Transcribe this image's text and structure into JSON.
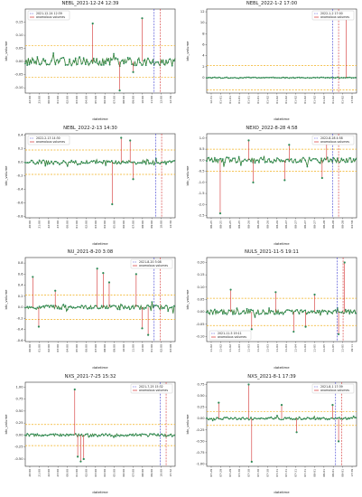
{
  "colors": {
    "series_line": "#2e7d32",
    "series_point": "#2e8b57",
    "anomaly_line": "#d32f2f",
    "threshold": "#f2b01e",
    "event_line": "#3a3ad0"
  },
  "chart_data": [
    {
      "type": "line",
      "title": "NEBL_2021-12-24 12:39",
      "xlabel": "datetime",
      "ylabel": "btc_volume",
      "ylim": [
        -0.12,
        0.2
      ],
      "yticks": [
        -0.1,
        -0.05,
        0.0,
        0.05,
        0.1,
        0.15
      ],
      "ytick_labels": [
        "-0.10",
        "-0.05",
        "0.00",
        "0.05",
        "0.10",
        "0.15"
      ],
      "thresholds": [
        0.06,
        -0.06
      ],
      "event_line": 0.86,
      "legend": [
        "2021-12-24 12:39",
        "anomalous volumes"
      ],
      "legend_pos": "top-left",
      "base_amp": 0.015,
      "anomalies": [
        [
          0.45,
          0.145
        ],
        [
          0.63,
          -0.11
        ],
        [
          0.78,
          0.165
        ],
        [
          0.72,
          -0.04
        ]
      ],
      "xticks": [
        "22:00",
        "23:00",
        "00:00",
        "01:00",
        "02:00",
        "03:00",
        "04:00",
        "05:00",
        "06:00",
        "07:00",
        "08:00",
        "09:00",
        "10:00",
        "11:00",
        "12:00",
        "12:39"
      ]
    },
    {
      "type": "line",
      "title": "NEBL_2022-1-2 17:00",
      "xlabel": "datetime",
      "ylabel": "btc_volume",
      "ylim": [
        -2.8,
        12.5
      ],
      "yticks": [
        0,
        2,
        4,
        6,
        8,
        10,
        12
      ],
      "ytick_labels": [
        "0",
        "2",
        "4",
        "6",
        "8",
        "10",
        "12"
      ],
      "thresholds": [
        2.2,
        -2.2
      ],
      "event_line": 0.84,
      "legend": [
        "2022-1-2 17:00",
        "anomalous volumes"
      ],
      "legend_pos": "top-right",
      "base_amp": 0.08,
      "anomalies": [
        [
          0.93,
          11.5
        ]
      ],
      "xticks": [
        "12-31",
        "01-01",
        "01-01",
        "01-01",
        "01-01",
        "01-01",
        "01-02",
        "01-02",
        "01-02",
        "01-02",
        "01-02",
        "01-02",
        "01-02",
        "01-02",
        "01-02",
        "17:00"
      ]
    },
    {
      "type": "line",
      "title": "NEBL_2022-2-13 14:30",
      "xlabel": "datetime",
      "ylabel": "btc_volume",
      "ylim": [
        -0.82,
        0.42
      ],
      "yticks": [
        -0.8,
        -0.6,
        -0.4,
        -0.2,
        0.0,
        0.2,
        0.4
      ],
      "ytick_labels": [
        "-0.8",
        "-0.6",
        "-0.4",
        "-0.2",
        "0.0",
        "0.2",
        "0.4"
      ],
      "thresholds": [
        0.18,
        -0.18
      ],
      "event_line": 0.87,
      "legend": [
        "2022-2-13 14:30",
        "anomalous volumes"
      ],
      "legend_pos": "top-left",
      "base_amp": 0.03,
      "anomalies": [
        [
          0.58,
          -0.62
        ],
        [
          0.64,
          0.36
        ],
        [
          0.7,
          0.32
        ],
        [
          0.72,
          -0.25
        ]
      ],
      "xticks": [
        "20:00",
        "21:00",
        "22:00",
        "23:00",
        "00:00",
        "01:00",
        "02:00",
        "03:00",
        "04:00",
        "05:00",
        "06:00",
        "07:00",
        "08:00",
        "09:00",
        "10:00",
        "14:30"
      ]
    },
    {
      "type": "line",
      "title": "NEXO_2022-8-28 4:58",
      "xlabel": "datetime",
      "ylabel": "btc_volume",
      "ylim": [
        -2.6,
        1.2
      ],
      "yticks": [
        -2.5,
        -2.0,
        -1.5,
        -1.0,
        -0.5,
        0.0,
        0.5,
        1.0
      ],
      "ytick_labels": [
        "-2.5",
        "-2.0",
        "-1.5",
        "-1.0",
        "-0.5",
        "0.0",
        "0.5",
        "1.0"
      ],
      "thresholds": [
        0.5,
        -0.5
      ],
      "event_line": 0.84,
      "legend": [
        "2022-8-28 4:58",
        "anomalous volumes"
      ],
      "legend_pos": "top-right",
      "base_amp": 0.12,
      "anomalies": [
        [
          0.09,
          -2.4
        ],
        [
          0.28,
          0.9
        ],
        [
          0.31,
          -1.0
        ],
        [
          0.52,
          -0.9
        ],
        [
          0.55,
          0.7
        ],
        [
          0.77,
          -0.8
        ],
        [
          0.8,
          0.9
        ]
      ],
      "xticks": [
        "08-25",
        "08-25",
        "08-25",
        "08-25",
        "08-26",
        "08-26",
        "08-26",
        "08-26",
        "08-27",
        "08-27",
        "08-27",
        "08-27",
        "08-28",
        "08-28",
        "08-28",
        "04:58"
      ]
    },
    {
      "type": "line",
      "title": "NU_2021-8-20 3:08",
      "xlabel": "datetime",
      "ylabel": "btc_volume",
      "ylim": [
        -0.62,
        0.9
      ],
      "yticks": [
        -0.6,
        -0.4,
        -0.2,
        0.0,
        0.2,
        0.4,
        0.6,
        0.8
      ],
      "ytick_labels": [
        "-0.6",
        "-0.4",
        "-0.2",
        "0.0",
        "0.2",
        "0.4",
        "0.6",
        "0.8"
      ],
      "thresholds": [
        0.22,
        -0.22
      ],
      "event_line": 0.86,
      "legend": [
        "2021-8-20 3:08",
        "anomalous volumes"
      ],
      "legend_pos": "top-right",
      "base_amp": 0.04,
      "anomalies": [
        [
          0.05,
          0.55
        ],
        [
          0.09,
          -0.35
        ],
        [
          0.2,
          0.3
        ],
        [
          0.48,
          0.7
        ],
        [
          0.52,
          0.62
        ],
        [
          0.56,
          0.45
        ],
        [
          0.74,
          0.6
        ],
        [
          0.78,
          -0.38
        ],
        [
          0.82,
          -0.5
        ]
      ],
      "xticks": [
        "00:00",
        "01:00",
        "02:00",
        "03:00",
        "04:00",
        "05:00",
        "06:00",
        "07:00",
        "08:00",
        "09:00",
        "10:00",
        "11:00",
        "12:00",
        "01:00",
        "02:00",
        "03:08"
      ]
    },
    {
      "type": "line",
      "title": "NULS_2021-11-5 19:11",
      "xlabel": "datetime",
      "ylabel": "btc_volume",
      "ylim": [
        -0.12,
        0.22
      ],
      "yticks": [
        -0.1,
        -0.05,
        0.0,
        0.05,
        0.1,
        0.15,
        0.2
      ],
      "ytick_labels": [
        "-0.10",
        "-0.05",
        "0.00",
        "0.05",
        "0.10",
        "0.15",
        "0.20"
      ],
      "thresholds": [
        0.055,
        -0.055
      ],
      "event_line": 0.87,
      "legend": [
        "2021-11-5 19:11",
        "anomalous volumes"
      ],
      "legend_pos": "bottom-left",
      "base_amp": 0.01,
      "anomalies": [
        [
          0.16,
          0.09
        ],
        [
          0.3,
          -0.07
        ],
        [
          0.46,
          0.08
        ],
        [
          0.58,
          -0.08
        ],
        [
          0.66,
          -0.06
        ],
        [
          0.72,
          0.07
        ],
        [
          0.88,
          -0.09
        ],
        [
          0.92,
          0.2
        ]
      ],
      "xticks": [
        "11-02",
        "11-02",
        "11-02",
        "11-03",
        "11-03",
        "11-03",
        "11-03",
        "11-04",
        "11-04",
        "11-04",
        "11-04",
        "11-05",
        "11-05",
        "11-05",
        "11-05",
        "19:11"
      ]
    },
    {
      "type": "line",
      "title": "NXS_2021-7-25 15:32",
      "xlabel": "datetime",
      "ylabel": "btc_volume",
      "ylim": [
        -0.65,
        1.1
      ],
      "yticks": [
        -0.5,
        -0.25,
        0.0,
        0.25,
        0.5,
        0.75,
        1.0
      ],
      "ytick_labels": [
        "-0.50",
        "-0.25",
        "0.00",
        "0.25",
        "0.50",
        "0.75",
        "1.00"
      ],
      "thresholds": [
        0.22,
        -0.22
      ],
      "event_line": 0.9,
      "legend": [
        "2021-7-25 15:32",
        "anomalous volumes"
      ],
      "legend_pos": "top-right",
      "base_amp": 0.03,
      "anomalies": [
        [
          0.33,
          0.95
        ],
        [
          0.35,
          -0.45
        ],
        [
          0.37,
          -0.55
        ],
        [
          0.39,
          -0.5
        ]
      ],
      "xticks": [
        "20:00",
        "21:00",
        "22:00",
        "23:00",
        "00:00",
        "01:00",
        "02:00",
        "03:00",
        "04:00",
        "05:00",
        "06:00",
        "07:00",
        "08:00",
        "09:00",
        "10:00",
        "15:32"
      ]
    },
    {
      "type": "line",
      "title": "NXS_2021-8-1 17:39",
      "xlabel": "datetime",
      "ylabel": "btc_volume",
      "ylim": [
        -1.05,
        0.8
      ],
      "yticks": [
        -1.0,
        -0.75,
        -0.5,
        -0.25,
        0.0,
        0.25,
        0.5,
        0.75
      ],
      "ytick_labels": [
        "-1.00",
        "-0.75",
        "-0.50",
        "-0.25",
        "0.00",
        "0.25",
        "0.50",
        "0.75"
      ],
      "thresholds": [
        0.15,
        -0.15
      ],
      "event_line": 0.86,
      "legend": [
        "2021-8-1 17:39",
        "anomalous volumes"
      ],
      "legend_pos": "top-right",
      "base_amp": 0.025,
      "anomalies": [
        [
          0.08,
          0.35
        ],
        [
          0.28,
          0.75
        ],
        [
          0.3,
          -0.95
        ],
        [
          0.5,
          0.3
        ],
        [
          0.6,
          -0.3
        ],
        [
          0.84,
          0.3
        ],
        [
          0.88,
          -0.5
        ]
      ],
      "xticks": [
        "07-29",
        "07-29",
        "07-29",
        "07-30",
        "07-30",
        "07-30",
        "07-30",
        "07-31",
        "07-31",
        "07-31",
        "07-31",
        "08-01",
        "08-01",
        "08-01",
        "08-01",
        "17:39"
      ]
    }
  ]
}
